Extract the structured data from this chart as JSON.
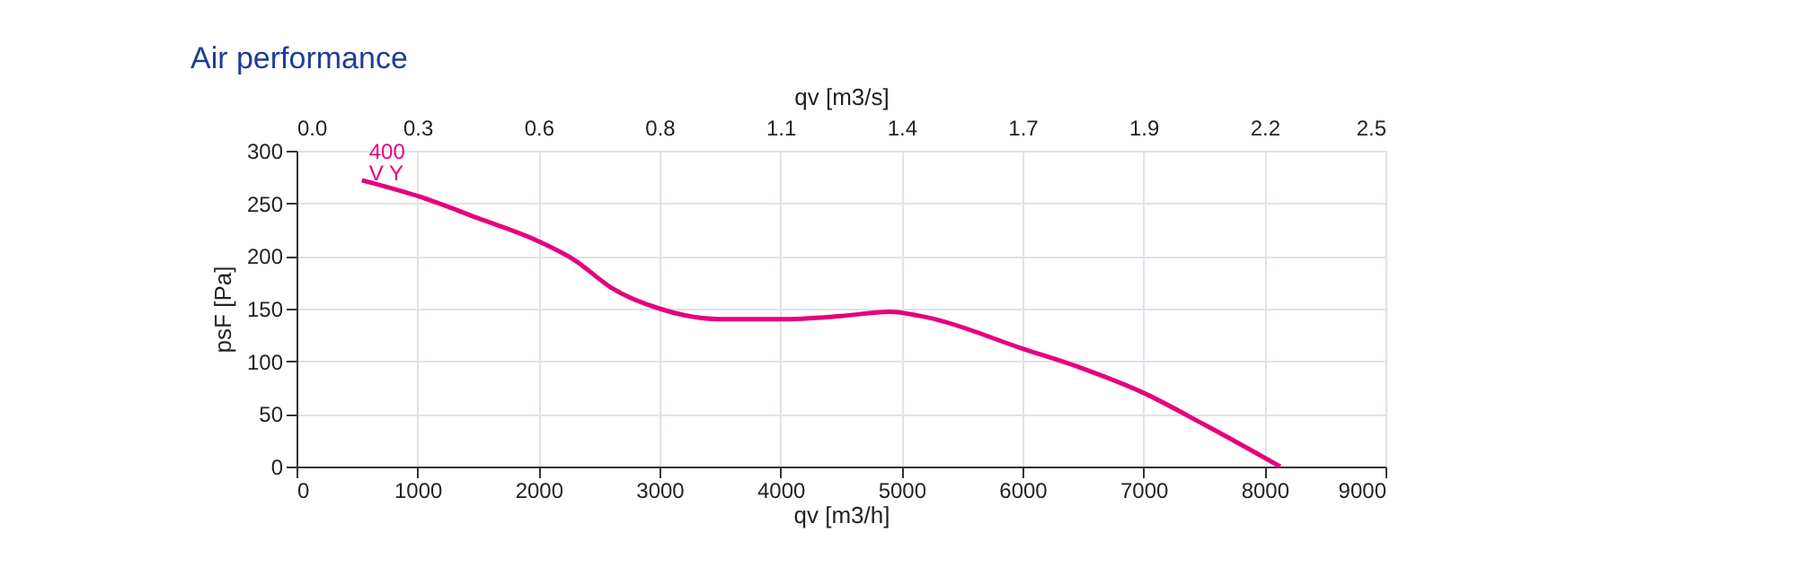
{
  "chart_data": {
    "type": "line",
    "title": "Air performance",
    "xlabel": "qv [m3/h]",
    "ylabel": "psF [Pa]",
    "x2label": "qv [m3/s]",
    "xlim": [
      0,
      9000
    ],
    "xticks": [
      0,
      1000,
      2000,
      3000,
      4000,
      5000,
      6000,
      7000,
      8000,
      9000
    ],
    "ylim": [
      0,
      300
    ],
    "yticks": [
      0,
      50,
      100,
      150,
      200,
      250,
      300
    ],
    "x2lim": [
      0,
      2.5
    ],
    "x2ticks": [
      {
        "value": 0,
        "label": "0.0"
      },
      {
        "value": 0.2778,
        "label": "0.3"
      },
      {
        "value": 0.5556,
        "label": "0.6"
      },
      {
        "value": 0.8333,
        "label": "0.8"
      },
      {
        "value": 1.1111,
        "label": "1.1"
      },
      {
        "value": 1.3889,
        "label": "1.4"
      },
      {
        "value": 1.6667,
        "label": "1.7"
      },
      {
        "value": 1.9444,
        "label": "1.9"
      },
      {
        "value": 2.2222,
        "label": "2.2"
      },
      2.5
    ],
    "grid": true,
    "marker": "none",
    "series": [
      {
        "name": "400 V Y",
        "color": "#e6007e",
        "x": [
          540,
          1000,
          1500,
          2000,
          2300,
          2600,
          3000,
          3500,
          4000,
          4500,
          4900,
          5200,
          6000,
          6500,
          7000,
          7500,
          8130
        ],
        "values": [
          272,
          257,
          236,
          214,
          196,
          170,
          150,
          140,
          140,
          143,
          147,
          142,
          112,
          93,
          70,
          40,
          0
        ]
      }
    ]
  }
}
